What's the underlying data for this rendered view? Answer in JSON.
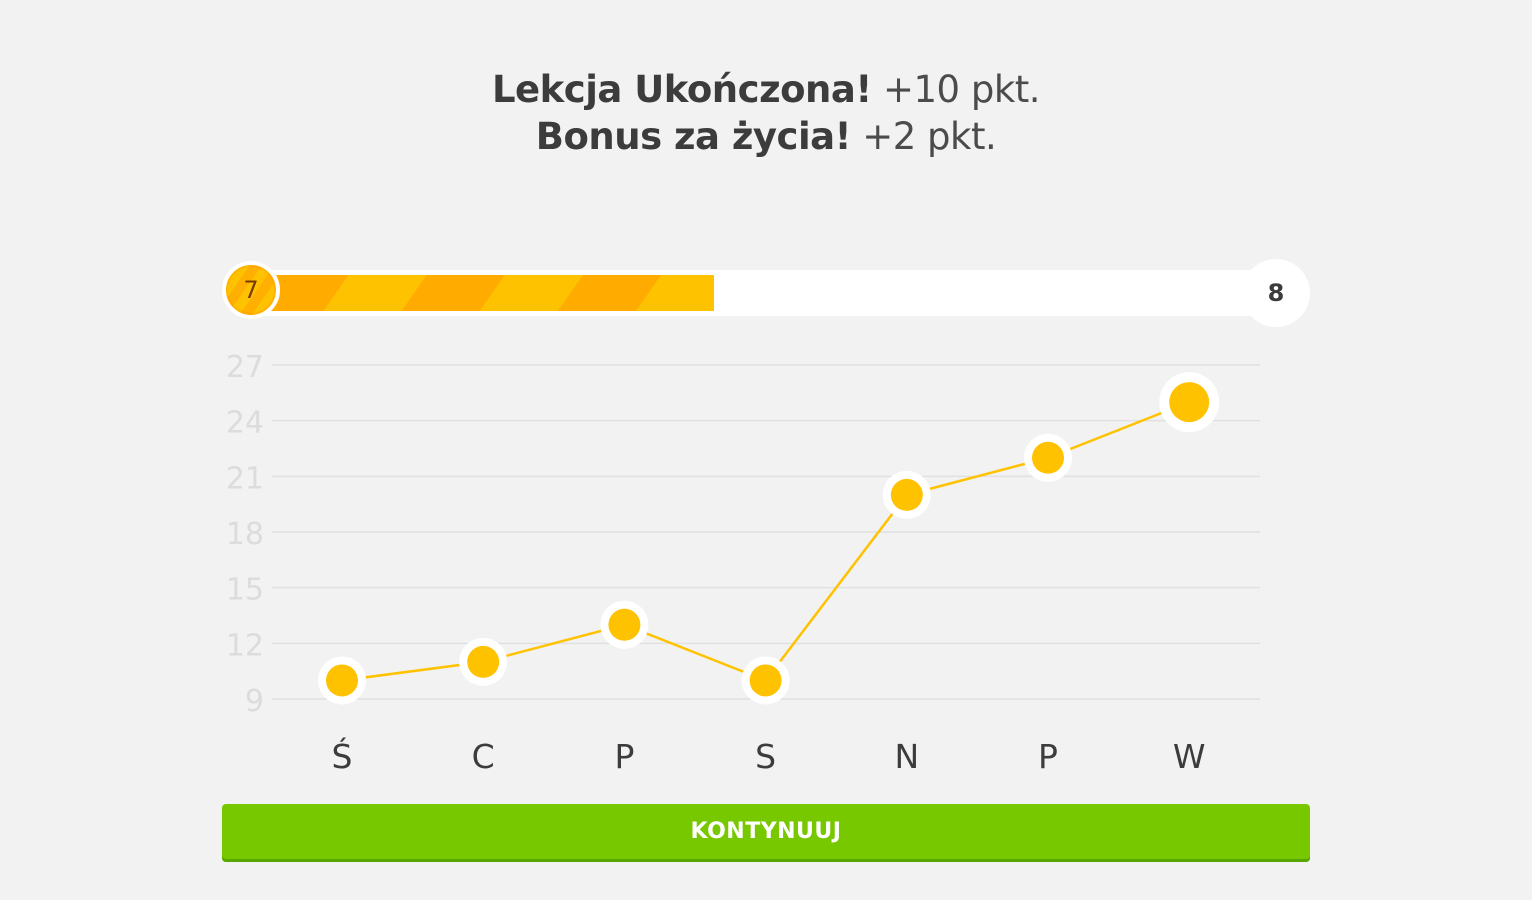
{
  "header": {
    "lesson_complete_label": "Lekcja Ukończona!",
    "lesson_points": "+10 pkt.",
    "bonus_label": "Bonus za życia!",
    "bonus_points": "+2 pkt."
  },
  "level": {
    "current": "7",
    "next": "8",
    "progress_fraction": 0.45
  },
  "colors": {
    "accent": "#ffc200",
    "accent_dark": "#ffab00",
    "button": "#78c800",
    "grid": "#e0e0e0"
  },
  "chart_data": {
    "type": "line",
    "categories": [
      "Ś",
      "C",
      "P",
      "S",
      "N",
      "P",
      "W"
    ],
    "values": [
      10,
      11,
      13,
      10,
      20,
      22,
      25
    ],
    "yticks": [
      "27",
      "24",
      "21",
      "18",
      "15",
      "12",
      "9"
    ],
    "ylim": [
      9,
      27
    ],
    "grid": true,
    "title": "",
    "xlabel": "",
    "ylabel": ""
  },
  "footer": {
    "continue_label": "KONTYNUUJ"
  }
}
